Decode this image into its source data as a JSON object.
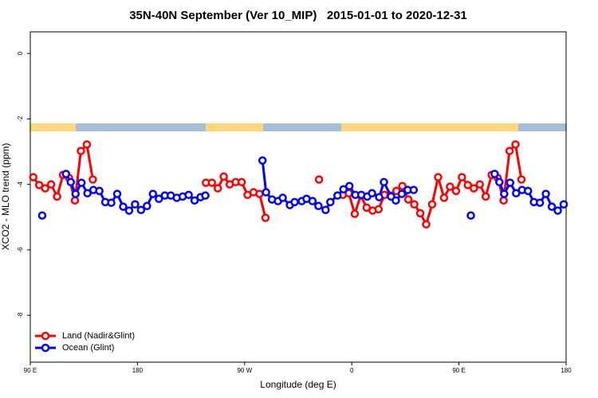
{
  "chart_data": {
    "type": "line",
    "title": "35N-40N September (Ver 10_MIP)   2015-01-01 to 2020-12-31",
    "xlabel": "Longitude (deg E)",
    "ylabel": "XCO2 - MLO trend (ppm)",
    "xlim": [
      90,
      540
    ],
    "xticks": [
      {
        "value": 90,
        "label": "90 E"
      },
      180,
      {
        "value": 270,
        "label": "90 W"
      },
      {
        "value": 360,
        "label": "0"
      },
      {
        "value": 450,
        "label": "90 E"
      },
      {
        "value": 540,
        "label": "180"
      }
    ],
    "ylim": [
      -9.43,
      0.66
    ],
    "yticks": [
      0,
      -2,
      -4,
      -6,
      -8
    ],
    "legend": "lower left",
    "series": [
      {
        "name": "Land (Nadir&Glint)",
        "color": "#ff0000",
        "x": [
          92.5,
          97.5,
          102.5,
          107.5,
          112.5,
          117.5,
          122.5,
          127.5,
          132.5,
          137.5,
          142.5,
          190,
          237.5,
          242.5,
          247.5,
          252.5,
          257.5,
          262.5,
          267.5,
          272.5,
          277.5,
          282.5,
          287.5,
          310,
          332.5,
          342.5,
          352.5,
          357.5,
          362.5,
          367.5,
          372.5,
          377.5,
          382.5,
          387.5,
          392.5,
          397.5,
          402.5,
          407.5,
          412.5,
          417.5,
          422.5,
          427.5,
          432.5,
          437.5,
          442.5,
          447.5,
          452.5,
          457.5,
          462.5,
          467.5,
          472.5,
          477.5,
          482.5,
          487.5,
          492.5,
          497.5,
          502.5
        ],
        "values": [
          -3.78,
          -4.02,
          -4.12,
          -4.0,
          -4.37,
          -3.71,
          -3.8,
          -4.49,
          -2.98,
          -2.78,
          -3.85,
          null,
          -3.95,
          -3.95,
          -4.12,
          -3.76,
          -4.0,
          -3.93,
          -3.93,
          -4.32,
          -4.24,
          -4.29,
          -5.02,
          null,
          -3.85,
          null,
          -4.32,
          -4.27,
          -4.9,
          -4.34,
          -4.71,
          -4.8,
          -4.76,
          -4.32,
          -4.34,
          -4.2,
          -4.05,
          -4.46,
          -4.61,
          -4.88,
          -5.22,
          -4.61,
          -3.78,
          -4.41,
          -4.07,
          -4.2,
          -3.78,
          -4.02,
          -4.12,
          -4.0,
          -4.37,
          -3.71,
          -3.8,
          -4.49,
          -2.98,
          -2.78,
          -3.85
        ]
      },
      {
        "name": "Ocean (Glint)",
        "color": "#0000ff",
        "x": [
          100,
          110,
          120,
          124,
          128,
          133,
          138,
          143,
          148,
          153,
          158,
          163,
          168,
          173,
          178,
          183,
          188,
          193,
          198,
          203,
          208,
          213,
          218,
          223,
          228,
          233,
          237,
          260,
          285,
          288,
          293,
          298,
          302,
          308,
          312,
          318,
          322,
          327,
          332,
          338,
          342,
          348,
          353,
          358,
          363,
          368,
          373,
          377,
          383,
          387,
          393,
          397,
          402,
          407,
          412,
          435,
          460,
          470,
          480,
          484,
          488,
          493,
          498,
          503,
          508,
          513,
          518,
          523,
          528,
          533,
          538
        ],
        "values": [
          -4.95,
          null,
          -3.68,
          -3.93,
          -4.29,
          -3.95,
          -4.27,
          -4.17,
          -4.2,
          -4.54,
          -4.56,
          -4.29,
          -4.68,
          -4.8,
          -4.61,
          -4.78,
          -4.66,
          -4.29,
          -4.44,
          -4.34,
          -4.34,
          -4.41,
          -4.37,
          -4.32,
          -4.49,
          -4.39,
          -4.34,
          null,
          -3.27,
          -4.24,
          -4.46,
          -4.51,
          -4.41,
          -4.63,
          -4.54,
          -4.51,
          -4.44,
          -4.51,
          -4.66,
          -4.78,
          -4.54,
          -4.34,
          -4.15,
          -4.05,
          -4.32,
          -4.32,
          -4.37,
          -4.27,
          -4.39,
          -3.93,
          -4.37,
          -4.49,
          -4.29,
          -4.17,
          -4.17,
          null,
          -4.95,
          null,
          -3.68,
          -3.93,
          -4.29,
          -3.95,
          -4.27,
          -4.17,
          -4.2,
          -4.54,
          -4.56,
          -4.29,
          -4.68,
          -4.8,
          -4.61
        ]
      }
    ]
  }
}
